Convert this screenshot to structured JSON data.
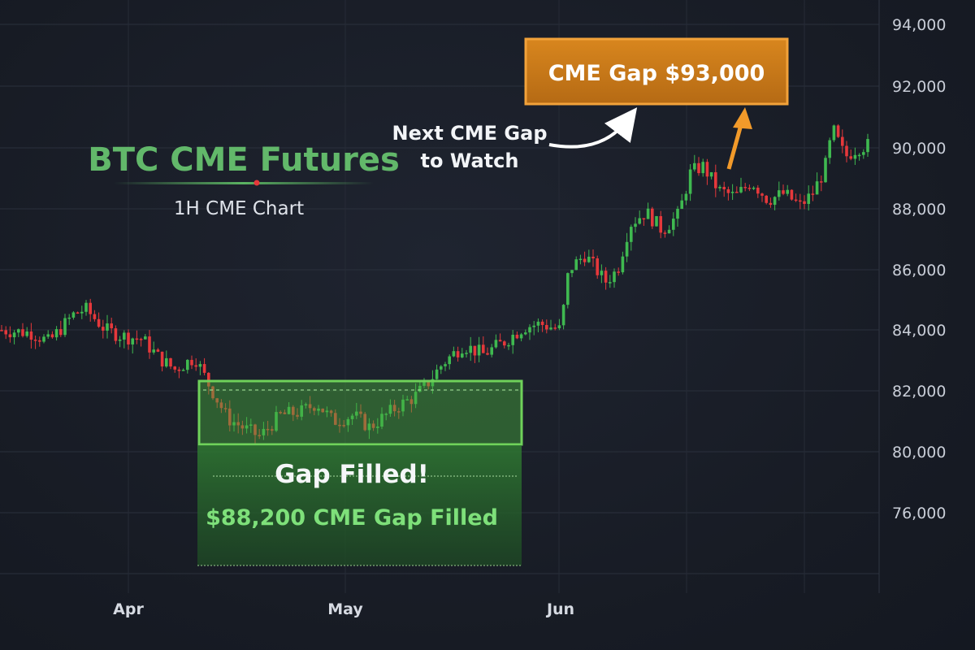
{
  "chart_data": {
    "type": "candlestick",
    "title": "BTC CME Futures",
    "subtitle": "1H CME Chart",
    "y_ticks": [
      "94,000",
      "92,000",
      "90,000",
      "88,000",
      "86,000",
      "84,000",
      "82,000",
      "80,000",
      "76,000"
    ],
    "x_ticks": [
      "Apr",
      "May",
      "Jun"
    ],
    "colors": {
      "up": "#3fb950",
      "down": "#e5383b",
      "background": "#181c26",
      "accent_gap": "#3c9c3a",
      "accent_target": "#c8781a"
    },
    "gap_zone": {
      "label": "Gap Filled!",
      "sublabel": "$88,200 CME Gap Filled"
    },
    "target": {
      "label": "CME Gap $93,000",
      "pointer_text": [
        "Next CME Gap",
        "to Watch"
      ]
    },
    "price_path": [
      [
        0,
        84000
      ],
      [
        40,
        83900
      ],
      [
        60,
        83600
      ],
      [
        90,
        84500
      ],
      [
        105,
        84700
      ],
      [
        130,
        84000
      ],
      [
        150,
        83800
      ],
      [
        175,
        83700
      ],
      [
        195,
        83100
      ],
      [
        215,
        82700
      ],
      [
        240,
        83100
      ],
      [
        255,
        82300
      ],
      [
        280,
        81100
      ],
      [
        305,
        80700
      ],
      [
        320,
        80500
      ],
      [
        345,
        81200
      ],
      [
        370,
        81300
      ],
      [
        390,
        81600
      ],
      [
        410,
        81000
      ],
      [
        435,
        81200
      ],
      [
        455,
        80800
      ],
      [
        470,
        81100
      ],
      [
        490,
        81500
      ],
      [
        510,
        81800
      ],
      [
        525,
        82200
      ],
      [
        545,
        82900
      ],
      [
        570,
        83500
      ],
      [
        595,
        83200
      ],
      [
        620,
        83600
      ],
      [
        645,
        84100
      ],
      [
        665,
        84200
      ],
      [
        690,
        84000
      ],
      [
        700,
        86000
      ],
      [
        720,
        86500
      ],
      [
        745,
        85600
      ],
      [
        760,
        86000
      ],
      [
        775,
        87500
      ],
      [
        795,
        87900
      ],
      [
        815,
        87300
      ],
      [
        835,
        87800
      ],
      [
        850,
        89200
      ],
      [
        865,
        89400
      ],
      [
        885,
        88600
      ],
      [
        905,
        88400
      ],
      [
        925,
        88900
      ],
      [
        945,
        88300
      ],
      [
        965,
        88500
      ],
      [
        985,
        88100
      ],
      [
        1000,
        88500
      ],
      [
        1015,
        89300
      ],
      [
        1025,
        90600
      ],
      [
        1040,
        89700
      ],
      [
        1055,
        90000
      ],
      [
        1070,
        90100
      ]
    ]
  }
}
